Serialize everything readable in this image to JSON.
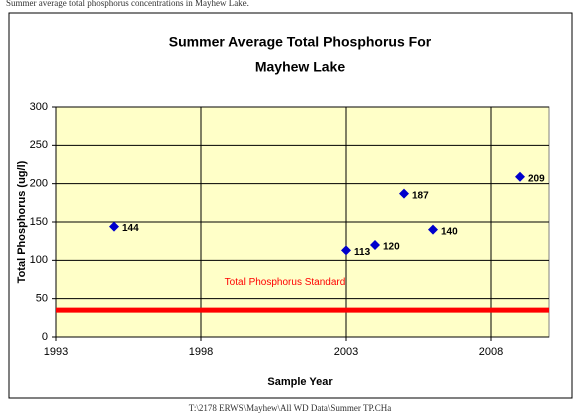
{
  "header": "Summer average total phosphorus concentrations in Mayhew Lake.",
  "chart_data": {
    "type": "scatter",
    "title": [
      "Summer Average Total Phosphorus For",
      "Mayhew Lake"
    ],
    "x_label": "Sample Year",
    "y_label": "Total Phosphorus (ug/l)",
    "x": [
      1995,
      2003,
      2004,
      2005,
      2006,
      2009
    ],
    "values": [
      144,
      113,
      120,
      187,
      140,
      209
    ],
    "color": "#0000cc",
    "xlim": [
      1993,
      2010
    ],
    "xticks": [
      1993,
      1998,
      2003,
      2008
    ],
    "ylim": [
      0,
      300
    ],
    "yticks": [
      0,
      50,
      100,
      150,
      200,
      250,
      300
    ],
    "grid": true,
    "reference_line": {
      "value": 35,
      "label": "Total Phosphorus Standard",
      "color": "#ff0000"
    }
  },
  "caption": "T:\\2178 ERWS\\Mayhew\\All WD Data\\Summer TP.CHa"
}
